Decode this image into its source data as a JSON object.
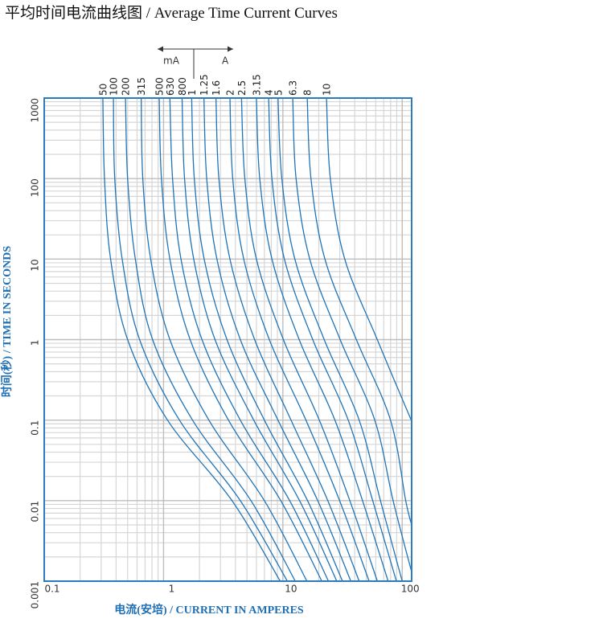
{
  "chart_data": {
    "type": "line",
    "title": "平均时间电流曲线图  / Average Time Current Curves",
    "x_label": "电流(安培) / CURRENT IN AMPERES",
    "y_label": "时间(秒) / TIME IN SECONDS",
    "unit_labels": [
      "mA",
      "A"
    ],
    "x_log": true,
    "y_log": true,
    "grid": true,
    "xlim": [
      0.1,
      120
    ],
    "ylim": [
      0.001,
      1000
    ],
    "xticks": [
      0.1,
      1,
      10,
      100
    ],
    "yticks": [
      0.001,
      0.01,
      0.1,
      1,
      10,
      100,
      1000
    ],
    "frame_color": "#2b7bc0",
    "series": [
      {
        "name": "50",
        "color": "#1f74b8",
        "x": [
          0.31,
          0.32,
          0.36,
          0.5,
          1.08,
          3.75,
          9.5
        ],
        "values": [
          1000,
          100,
          10,
          1,
          0.1,
          0.01,
          0.001
        ]
      },
      {
        "name": "100",
        "color": "#1f74b8",
        "x": [
          0.38,
          0.39,
          0.45,
          0.63,
          1.36,
          4.4,
          10.9
        ],
        "values": [
          1000,
          100,
          10,
          1,
          0.1,
          0.01,
          0.001
        ]
      },
      {
        "name": "200",
        "color": "#1f74b8",
        "x": [
          0.48,
          0.5,
          0.58,
          0.81,
          1.75,
          5.4,
          12.7
        ],
        "values": [
          1000,
          100,
          10,
          1,
          0.1,
          0.01,
          0.001
        ]
      },
      {
        "name": "315",
        "color": "#1f74b8",
        "x": [
          0.65,
          0.67,
          0.78,
          1.13,
          2.4,
          7.0,
          15.9
        ],
        "values": [
          1000,
          100,
          10,
          1,
          0.1,
          0.01,
          0.001
        ]
      },
      {
        "name": "500",
        "color": "#1f74b8",
        "x": [
          0.92,
          0.96,
          1.13,
          1.67,
          3.5,
          9.6,
          21.2
        ],
        "values": [
          1000,
          100,
          10,
          1,
          0.1,
          0.01,
          0.001
        ]
      },
      {
        "name": "630",
        "color": "#1f74b8",
        "x": [
          1.13,
          1.19,
          1.4,
          2.1,
          4.4,
          11.4,
          24.1
        ],
        "values": [
          1000,
          100,
          10,
          1,
          0.1,
          0.01,
          0.001
        ]
      },
      {
        "name": "800",
        "color": "#1f74b8",
        "x": [
          1.43,
          1.5,
          1.79,
          2.7,
          5.7,
          13.8,
          28.3
        ],
        "values": [
          1000,
          100,
          10,
          1,
          0.1,
          0.01,
          0.001
        ]
      },
      {
        "name": "1",
        "color": "#1f74b8",
        "x": [
          1.72,
          1.81,
          2.19,
          3.4,
          7.0,
          16.1,
          31.6
        ],
        "values": [
          1000,
          100,
          10,
          1,
          0.1,
          0.01,
          0.001
        ]
      },
      {
        "name": "1.25",
        "color": "#1f74b8",
        "x": [
          2.18,
          2.3,
          2.8,
          4.4,
          9.1,
          19.6,
          37.1
        ],
        "values": [
          1000,
          100,
          10,
          1,
          0.1,
          0.01,
          0.001
        ]
      },
      {
        "name": "1.6",
        "color": "#1f74b8",
        "x": [
          2.75,
          2.91,
          3.6,
          5.8,
          11.7,
          23.8,
          43.6
        ],
        "values": [
          1000,
          100,
          10,
          1,
          0.1,
          0.01,
          0.001
        ]
      },
      {
        "name": "2",
        "color": "#1f74b8",
        "x": [
          3.6,
          3.8,
          4.7,
          7.7,
          15.6,
          29.9,
          52.8
        ],
        "values": [
          1000,
          100,
          10,
          1,
          0.1,
          0.01,
          0.001
        ]
      },
      {
        "name": "2.5",
        "color": "#1f74b8",
        "x": [
          4.5,
          4.8,
          6.0,
          10.1,
          20.2,
          36.4,
          61.9
        ],
        "values": [
          1000,
          100,
          10,
          1,
          0.1,
          0.01,
          0.001
        ]
      },
      {
        "name": "3.15",
        "color": "#1f74b8",
        "x": [
          6.0,
          6.4,
          8.1,
          13.7,
          27.3,
          46.5,
          76.2
        ],
        "values": [
          1000,
          100,
          10,
          1,
          0.1,
          0.01,
          0.001
        ]
      },
      {
        "name": "4",
        "color": "#1f74b8",
        "x": [
          7.6,
          8.1,
          10.3,
          17.8,
          35.3,
          56.6,
          89.4
        ],
        "values": [
          1000,
          100,
          10,
          1,
          0.1,
          0.01,
          0.001
        ]
      },
      {
        "name": "5",
        "color": "#1f74b8",
        "x": [
          9.1,
          9.8,
          12.6,
          22.2,
          43.6,
          65.7,
          100
        ],
        "values": [
          1000,
          100,
          10,
          1,
          0.1,
          0.01,
          0.001
        ]
      },
      {
        "name": "6.3",
        "color": "#1f74b8",
        "x": [
          12.1,
          12.9,
          16.8,
          30.2,
          58.9,
          83.9,
          120
        ],
        "values": [
          1000,
          100,
          10,
          1,
          0.1,
          0.01,
          0.0013
        ]
      },
      {
        "name": "8",
        "color": "#1f74b8",
        "x": [
          16,
          17.2,
          22.5,
          41.3,
          79.8,
          107,
          120
        ],
        "values": [
          1000,
          100,
          10,
          1,
          0.1,
          0.01,
          0.005
        ]
      },
      {
        "name": "10",
        "color": "#1f74b8",
        "x": [
          23.2,
          25,
          33,
          61.8,
          119
        ],
        "values": [
          1000,
          100,
          10,
          1,
          0.1
        ]
      }
    ]
  }
}
